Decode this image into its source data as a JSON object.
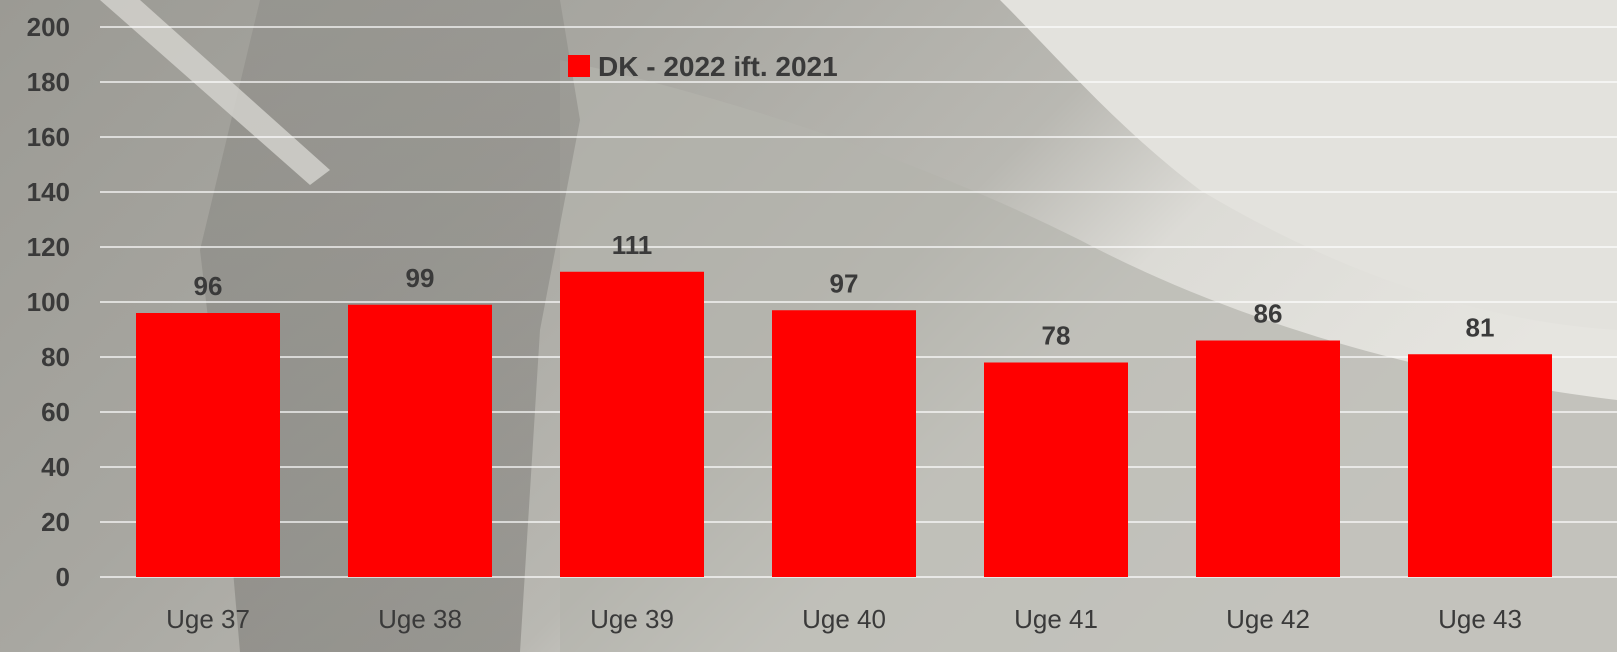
{
  "chart_data": {
    "type": "bar",
    "categories": [
      "Uge 37",
      "Uge 38",
      "Uge 39",
      "Uge 40",
      "Uge 41",
      "Uge 42",
      "Uge 43"
    ],
    "series": [
      {
        "name": "DK - 2022 ift. 2021",
        "values": [
          96,
          99,
          111,
          97,
          78,
          86,
          81
        ],
        "color": "#ff0000"
      }
    ],
    "ylim": [
      0,
      200
    ],
    "yticks": [
      0,
      20,
      40,
      60,
      80,
      100,
      120,
      140,
      160,
      180,
      200
    ],
    "grid": true,
    "legend": "top-center",
    "data_labels": true
  },
  "colors": {
    "bar": "#ff0000",
    "text": "#3a3a3a",
    "gridline": "#ffffff"
  }
}
